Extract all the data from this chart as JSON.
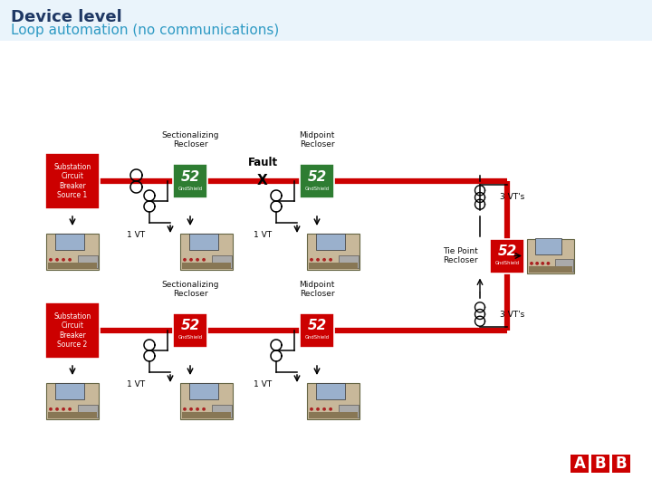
{
  "title_line1": "Device level",
  "title_line2": "Loop automation (no communications)",
  "title_color1": "#1F3864",
  "title_color2": "#2E9AC4",
  "background_color": "#FFFFFF",
  "red_color": "#CC0000",
  "green_color": "#2E7D32",
  "line_red": "#CC0000",
  "line_black": "#000000",
  "top_row": {
    "substation_label": "Substation\nCircuit\nBreaker\nSource 1",
    "sect_label": "Sectionalizing\nRecloser",
    "mid_label": "Midpoint\nRecloser",
    "sect_color": "#2E7D32",
    "mid_color": "#2E7D32",
    "vt_left": "1 VT",
    "vt_right": "1 VT"
  },
  "bottom_row": {
    "substation_label": "Substation\nCircuit\nBreaker\nSource 2",
    "sect_label": "Sectionalizing\nRecloser",
    "mid_label": "Midpoint\nRecloser",
    "sect_color": "#CC0000",
    "mid_color": "#CC0000",
    "vt_left": "1 VT",
    "vt_right": "1 VT"
  },
  "tie_label": "Tie Point\nRecloser",
  "tie_color": "#CC0000",
  "vt3_label": "3 VT's",
  "abb_red": "#CC0000",
  "figsize": [
    7.2,
    5.4
  ],
  "dpi": 100
}
